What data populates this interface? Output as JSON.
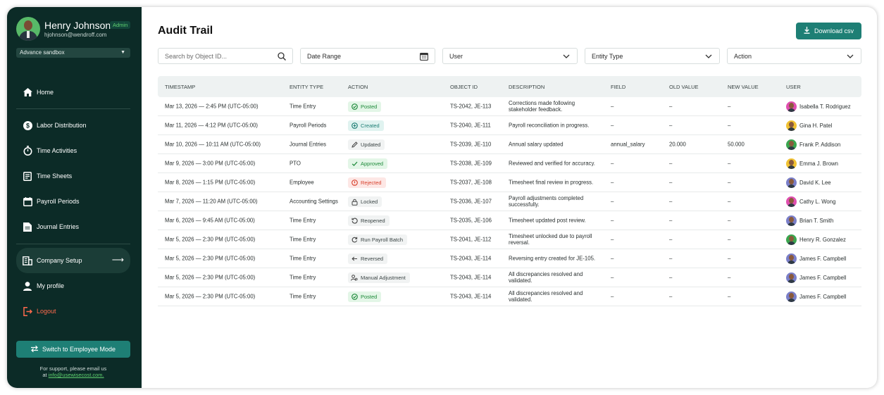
{
  "sidebar": {
    "user_name": "Henry Johnson",
    "user_email": "hjohnson@wendroff.com",
    "role_badge": "Admin",
    "workspace": "Advance sandbox",
    "nav": {
      "home": "Home",
      "labor_distribution": "Labor Distribution",
      "time_activities": "Time Activities",
      "time_sheets": "Time Sheets",
      "payroll_periods": "Payroll Periods",
      "journal_entries": "Journal Entries",
      "company_setup": "Company Setup",
      "my_profile": "My profile",
      "logout": "Logout"
    },
    "switch_mode": "Switch to Employee Mode",
    "support_text": "For support, please email us",
    "support_at": "at",
    "support_email": "info@usewisecost.com."
  },
  "header": {
    "title": "Audit Trail",
    "download_label": "Download csv"
  },
  "filters": {
    "search_placeholder": "Search by Object ID...",
    "date_range": "Date Range",
    "user": "User",
    "entity_type": "Entity Type",
    "action": "Action"
  },
  "table": {
    "columns": {
      "timestamp": "TIMESTAMP",
      "entity_type": "ENTITY TYPE",
      "action": "ACTION",
      "object_id": "OBJECT ID",
      "description": "DESCRIPTION",
      "field": "FIELD",
      "old_value": "OLD VALUE",
      "new_value": "NEW VALUE",
      "user": "USER"
    },
    "rows": [
      {
        "timestamp": "Mar 13, 2026 — 2:45 PM (UTC-05:00)",
        "entity": "Time Entry",
        "action": "Posted",
        "object_id": "TS-2042, JE-113",
        "description": "Corrections made following stakeholder feedback.",
        "field": "–",
        "old": "–",
        "new": "–",
        "user": "Isabella T. Rodriguez"
      },
      {
        "timestamp": "Mar 11, 2026 — 4:12 PM (UTC-05:00)",
        "entity": "Payroll Periods",
        "action": "Created",
        "object_id": "TS-2040, JE-111",
        "description": "Payroll reconciliation in progress.",
        "field": "–",
        "old": "–",
        "new": "–",
        "user": "Gina H. Patel"
      },
      {
        "timestamp": "Mar 10, 2026 — 10:11 AM (UTC-05:00)",
        "entity": "Journal Entries",
        "action": "Updated",
        "object_id": "TS-2039, JE-110",
        "description": "Annual salary updated",
        "field": "annual_salary",
        "old": "20.000",
        "new": "50.000",
        "user": "Frank P. Addison"
      },
      {
        "timestamp": "Mar 9, 2026 — 3:00 PM (UTC-05:00)",
        "entity": "PTO",
        "action": "Approved",
        "object_id": "TS-2038, JE-109",
        "description": "Reviewed and verified for accuracy.",
        "field": "–",
        "old": "–",
        "new": "–",
        "user": "Emma J. Brown"
      },
      {
        "timestamp": "Mar 8, 2026 — 1:15 PM (UTC-05:00)",
        "entity": "Employee",
        "action": "Rejected",
        "object_id": "TS-2037, JE-108",
        "description": "Timesheet final review in progress.",
        "field": "–",
        "old": "–",
        "new": "–",
        "user": "David K. Lee"
      },
      {
        "timestamp": "Mar 7, 2026 — 11:20 AM (UTC-05:00)",
        "entity": "Accounting Settings",
        "action": "Locked",
        "object_id": "TS-2036, JE-107",
        "description": "Payroll adjustments completed successfully.",
        "field": "–",
        "old": "–",
        "new": "–",
        "user": "Cathy L. Wong"
      },
      {
        "timestamp": "Mar 6, 2026 — 9:45 AM (UTC-05:00)",
        "entity": "Time Entry",
        "action": "Reopened",
        "object_id": "TS-2035, JE-106",
        "description": "Timesheet updated post review.",
        "field": "–",
        "old": "–",
        "new": "–",
        "user": "Brian T. Smith"
      },
      {
        "timestamp": "Mar 5, 2026 — 2:30 PM (UTC-05:00)",
        "entity": "Time Entry",
        "action": "Run Payroll Batch",
        "object_id": "TS-2041, JE-112",
        "description": "Timesheet unlocked due to payroll reversal.",
        "field": "–",
        "old": "–",
        "new": "–",
        "user": "Henry R. Gonzalez"
      },
      {
        "timestamp": "Mar 5, 2026 — 2:30 PM (UTC-05:00)",
        "entity": "Time Entry",
        "action": "Reversed",
        "object_id": "TS-2043, JE-114",
        "description": "Reversing entry created for JE-105.",
        "field": "–",
        "old": "–",
        "new": "–",
        "user": "James F. Campbell"
      },
      {
        "timestamp": "Mar 5, 2026 — 2:30 PM (UTC-05:00)",
        "entity": "Time Entry",
        "action": "Manual Adjustment",
        "object_id": "TS-2043, JE-114",
        "description": "All discrepancies resolved and validated.",
        "field": "–",
        "old": "–",
        "new": "–",
        "user": "James F. Campbell"
      },
      {
        "timestamp": "Mar 5, 2026 — 2:30 PM (UTC-05:00)",
        "entity": "Time Entry",
        "action": "Posted",
        "object_id": "TS-2043, JE-114",
        "description": "All discrepancies resolved and validated.",
        "field": "–",
        "old": "–",
        "new": "–",
        "user": "James F. Campbell"
      }
    ]
  },
  "colors": {
    "sidebar_bg": "#0c2b27",
    "accent": "#1e7f75",
    "logout": "#ff6a4d",
    "status_green": "#1e8a3a",
    "status_red": "#d8432f"
  }
}
